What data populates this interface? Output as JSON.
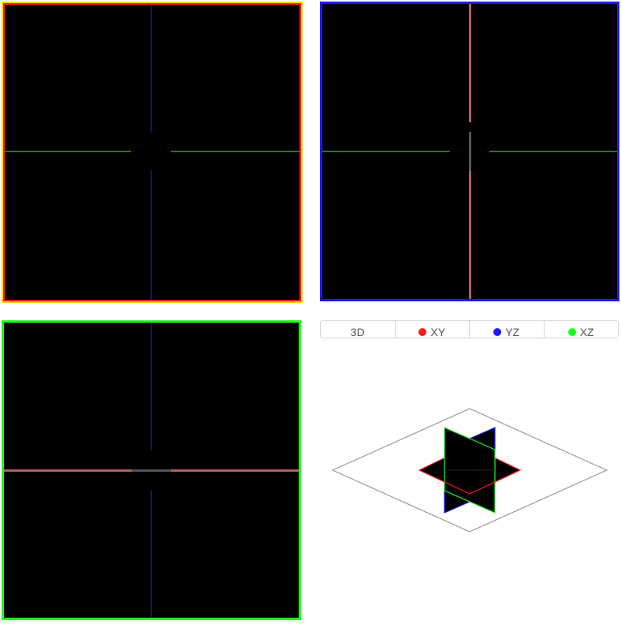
{
  "tabs": [
    {
      "label": "3D",
      "dot_color": null
    },
    {
      "label": "XY",
      "dot_color": "#ff1a1a"
    },
    {
      "label": "YZ",
      "dot_color": "#1a1aff"
    },
    {
      "label": "XZ",
      "dot_color": "#1aff1a"
    }
  ],
  "colors": {
    "xy_border": "#ff1a1a",
    "xy_outer": "#ffd400",
    "yz_border": "#1a1aff",
    "xz_border": "#1aff1a",
    "crosshair_red": "#b06060",
    "crosshair_green": "#1f7a1f",
    "crosshair_blue": "#10107a"
  }
}
